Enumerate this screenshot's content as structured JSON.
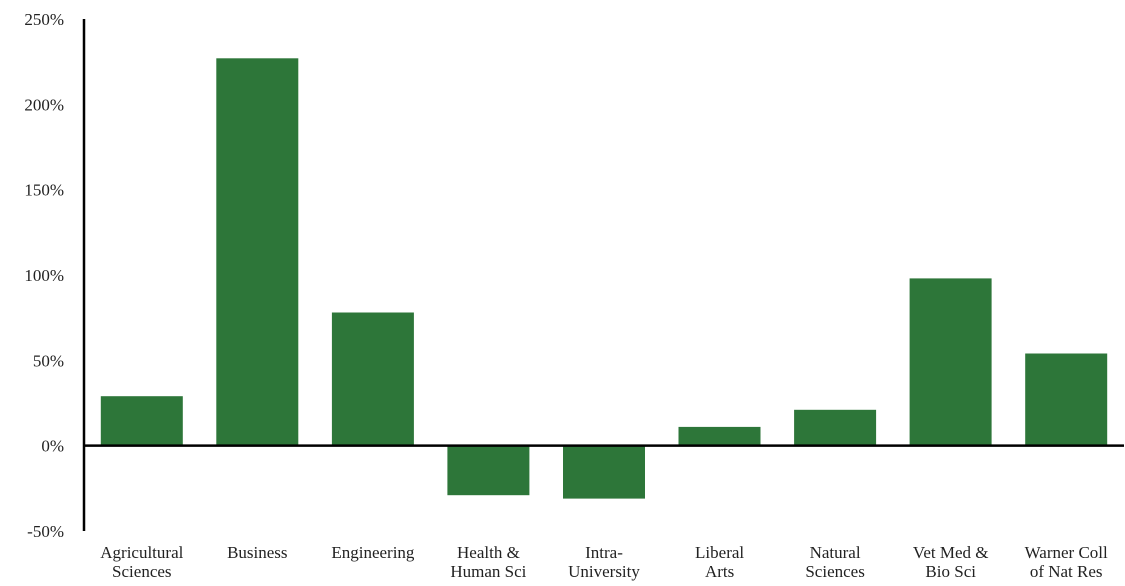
{
  "chart_data": {
    "type": "bar",
    "title": "",
    "xlabel": "",
    "ylabel": "",
    "ylim": [
      -50,
      250
    ],
    "yticks": [
      "-50%",
      "0%",
      "50%",
      "100%",
      "150%",
      "200%",
      "250%"
    ],
    "ytick_values": [
      -50,
      0,
      50,
      100,
      150,
      200,
      250
    ],
    "categories": [
      [
        "Agricultural",
        "Sciences"
      ],
      [
        "Business"
      ],
      [
        "Engineering"
      ],
      [
        "Health &",
        "Human Sci"
      ],
      [
        "Intra-",
        "University"
      ],
      [
        "Liberal",
        "Arts"
      ],
      [
        "Natural",
        "Sciences"
      ],
      [
        "Vet Med &",
        "Bio Sci"
      ],
      [
        "Warner Coll",
        "of Nat Res"
      ]
    ],
    "values": [
      29,
      227,
      78,
      -29,
      -31,
      11,
      21,
      98,
      54
    ],
    "bar_color": "#2d7639",
    "axis_color": "#000000",
    "grid": false,
    "legend": "none"
  }
}
